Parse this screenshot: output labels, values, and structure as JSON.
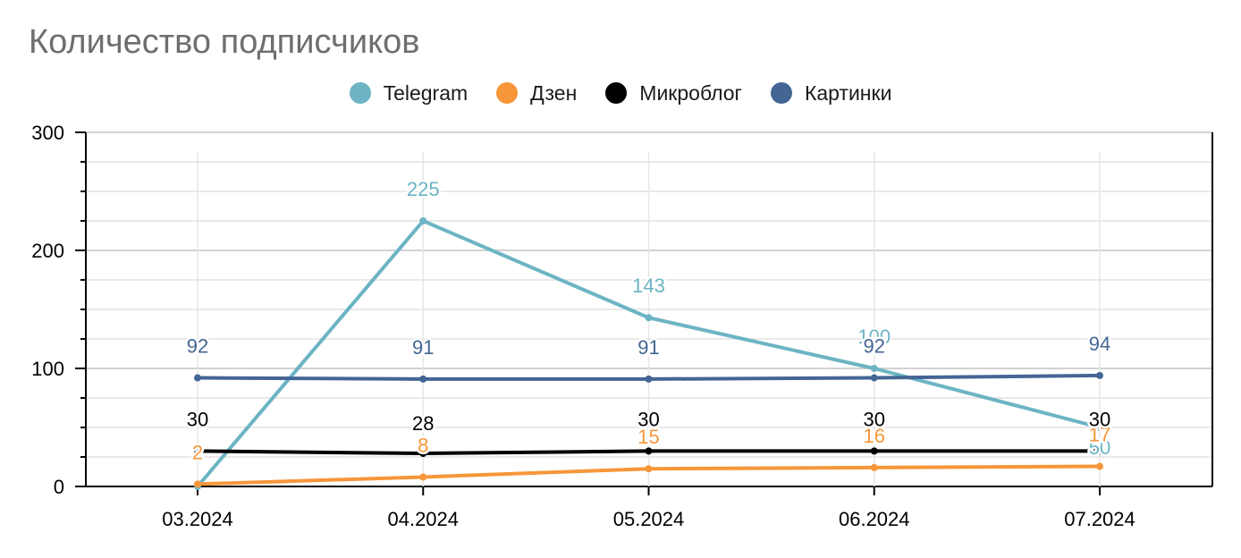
{
  "chart_data": {
    "type": "line",
    "title": "Количество подписчиков",
    "categories": [
      "03.2024",
      "04.2024",
      "05.2024",
      "06.2024",
      "07.2024"
    ],
    "ylim": [
      0,
      300
    ],
    "yticks": [
      0,
      100,
      200,
      300
    ],
    "ytick_labels": [
      "0",
      "100",
      "200",
      "300"
    ],
    "xlabel": "",
    "ylabel": "",
    "grid": true,
    "legend_position": "top-center",
    "series": [
      {
        "name": "Telegram",
        "color": "#6cb4c4",
        "values": [
          0,
          225,
          143,
          100,
          50
        ]
      },
      {
        "name": "Дзен",
        "color": "#f7963a",
        "values": [
          2,
          8,
          15,
          16,
          17
        ]
      },
      {
        "name": "Микроблог",
        "color": "#000000",
        "values": [
          30,
          28,
          30,
          30,
          30
        ]
      },
      {
        "name": "Картинки",
        "color": "#446694",
        "values": [
          92,
          91,
          91,
          92,
          94
        ]
      }
    ],
    "data_labels": {
      "Telegram": [
        "",
        "225",
        "143",
        "100",
        "50"
      ],
      "Дзен": [
        "2",
        "8",
        "15",
        "16",
        "17"
      ],
      "Микроблог": [
        "30",
        "28",
        "30",
        "30",
        "30"
      ],
      "Картинки": [
        "92",
        "91",
        "91",
        "92",
        "94"
      ]
    }
  }
}
